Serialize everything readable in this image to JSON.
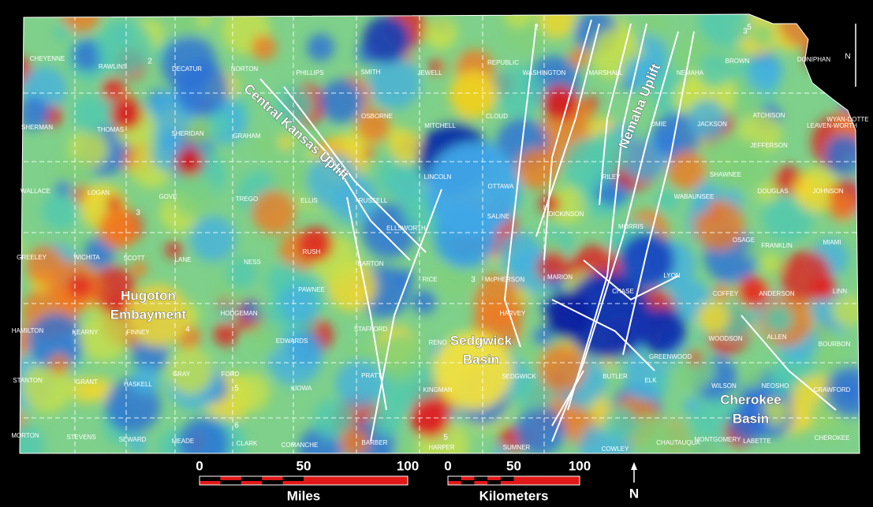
{
  "counties": [
    "CHEYENNE",
    "RAWLINS",
    "DECATUR",
    "NORTON",
    "PHILLIPS",
    "SMITH",
    "JEWELL",
    "REPUBLIC",
    "WASHINGTON",
    "MARSHALL",
    "NEMAHA",
    "BROWN",
    "DONIPHAN",
    "SHERMAN",
    "THOMAS",
    "SHERIDAN",
    "GRAHAM",
    "OSBORNE",
    "MITCHELL",
    "CLOUD",
    "OMIE",
    "JACKSON",
    "ATCHISON",
    "LEAVEN-WORTH",
    "WYAN-DOTTE",
    "JEFFERSON",
    "WALLACE",
    "LOGAN",
    "GOVE",
    "TREGO",
    "ELLIS",
    "RUSSELL",
    "LINCOLN",
    "OTTAWA",
    "RILEY",
    "WABAUNSEE",
    "SHAWNEE",
    "DOUGLAS",
    "JOHNSON",
    "SALINE",
    "DICKINSON",
    "ELLSWORTH",
    "MORRIS",
    "OSAGE",
    "FRANKLIN",
    "MIAMI",
    "GREELEY",
    "WICHITA",
    "SCOTT",
    "LANE",
    "NESS",
    "RUSH",
    "BARTON",
    "RICE",
    "McPHERSON",
    "MARION",
    "CHASE",
    "LYON",
    "COFFEY",
    "ANDERSON",
    "LINN",
    "PAWNEE",
    "HODGEMAN",
    "STAFFORD",
    "RENO",
    "HARVEY",
    "GREENWOOD",
    "WOODSON",
    "ALLEN",
    "BOURBON",
    "BUTLER",
    "HAMILTON",
    "KEARNY",
    "FINNEY",
    "EDWARDS",
    "GRAY",
    "FORD",
    "KIOWA",
    "PRATT",
    "KINGMAN",
    "SEDGWICK",
    "ELK",
    "WILSON",
    "NEOSHO",
    "CRAWFORD",
    "STANTON",
    "GRANT",
    "HASKELL",
    "MORTON",
    "STEVENS",
    "SEWARD",
    "MEADE",
    "CLARK",
    "COMANCHE",
    "BARBER",
    "HARPER",
    "SUMNER",
    "COWLEY",
    "CHAUTAUQUA",
    "MONTGOMERY",
    "LABETTE",
    "CHEROKEE"
  ],
  "features": {
    "central_kansas_uplift": "Central Kansas Uplift",
    "nemaha_uplift": "Nemaha Uplift",
    "hugoton_embayment": [
      "Hugoton",
      "Embayment"
    ],
    "sedgwick_basin": [
      "Sedgwick",
      "Basin"
    ],
    "cherokee_basin": [
      "Cherokee",
      "Basin"
    ]
  },
  "contour_labels": [
    2,
    3,
    3,
    4,
    5,
    5,
    6,
    2,
    5,
    3
  ],
  "north_labels": [
    "N",
    "N"
  ],
  "scale": {
    "miles": {
      "ticks": [
        0,
        50,
        100
      ],
      "unit": "Miles"
    },
    "kilometers": {
      "ticks": [
        0,
        50,
        100
      ],
      "unit": "Kilometers"
    }
  }
}
